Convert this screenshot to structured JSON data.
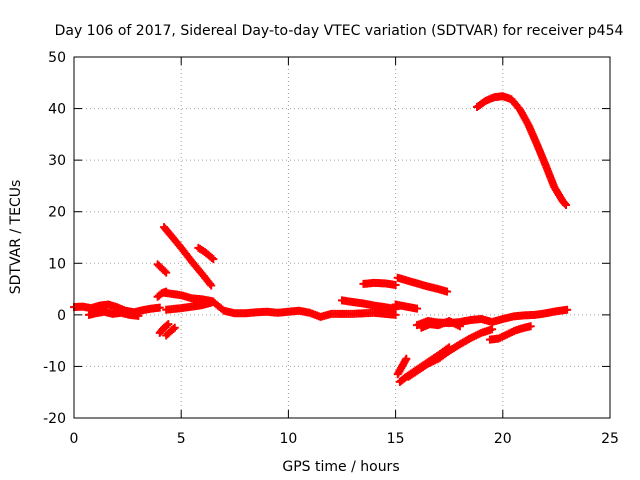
{
  "chart_data": {
    "type": "scatter",
    "title": "Day 106 of 2017, Sidereal Day-to-day VTEC variation (SDTVAR) for receiver p454",
    "xlabel": "GPS time / hours",
    "ylabel": "SDTVAR / TECUs",
    "xlim": [
      0,
      25
    ],
    "ylim": [
      -20,
      50
    ],
    "xticks": [
      0,
      5,
      10,
      15,
      20,
      25
    ],
    "yticks": [
      -20,
      -10,
      0,
      10,
      20,
      30,
      40,
      50
    ],
    "grid": true,
    "marker": "plus",
    "color": "#ff0000",
    "series": [
      {
        "x": [
          0.0,
          0.4,
          0.8,
          1.2,
          1.6,
          2.0,
          2.4,
          2.8,
          3.2,
          3.6,
          4.0
        ],
        "y": [
          1.5,
          1.6,
          1.3,
          1.8,
          2.0,
          1.5,
          0.8,
          0.5,
          0.9,
          1.2,
          1.4
        ]
      },
      {
        "x": [
          0.7,
          1.0,
          1.4,
          1.8,
          2.2,
          2.6,
          3.0
        ],
        "y": [
          0.0,
          0.3,
          0.6,
          0.2,
          0.4,
          0.0,
          -0.2
        ]
      },
      {
        "x": [
          3.9,
          4.1,
          4.3
        ],
        "y": [
          9.8,
          9.0,
          8.2
        ]
      },
      {
        "x": [
          3.9,
          4.1,
          4.3
        ],
        "y": [
          3.5,
          4.2,
          4.5
        ]
      },
      {
        "x": [
          4.0,
          4.2,
          4.4
        ],
        "y": [
          -3.5,
          -2.5,
          -1.8
        ]
      },
      {
        "x": [
          4.3,
          4.5,
          4.7
        ],
        "y": [
          -4.0,
          -3.2,
          -2.5
        ]
      },
      {
        "x": [
          4.2,
          4.5,
          5.0,
          5.5,
          6.0,
          6.4
        ],
        "y": [
          17.0,
          15.5,
          13.0,
          10.3,
          7.8,
          5.7
        ]
      },
      {
        "x": [
          5.8,
          6.1,
          6.5
        ],
        "y": [
          13.0,
          12.2,
          10.8
        ]
      },
      {
        "x": [
          4.2,
          5.0,
          5.5,
          6.0,
          6.5
        ],
        "y": [
          4.3,
          3.8,
          3.2,
          3.0,
          2.6
        ]
      },
      {
        "x": [
          4.3,
          5.0,
          5.5,
          6.0,
          6.5,
          7.0,
          7.5,
          8.0,
          8.5,
          9.0,
          9.5,
          10.0,
          10.5,
          11.0,
          11.5,
          12.0,
          13.0,
          14.0,
          14.5,
          15.0
        ],
        "y": [
          1.0,
          1.3,
          1.6,
          1.9,
          2.5,
          0.8,
          0.3,
          0.3,
          0.5,
          0.6,
          0.4,
          0.6,
          0.8,
          0.4,
          -0.4,
          0.2,
          0.2,
          0.4,
          0.2,
          0.0
        ]
      },
      {
        "x": [
          12.5,
          13.0,
          13.5,
          14.0,
          14.5,
          15.0
        ],
        "y": [
          2.8,
          2.5,
          2.2,
          1.8,
          1.5,
          1.1
        ]
      },
      {
        "x": [
          13.5,
          14.0,
          14.5,
          15.0
        ],
        "y": [
          6.0,
          6.2,
          6.1,
          5.8
        ]
      },
      {
        "x": [
          15.1,
          15.5,
          16.0,
          16.5,
          17.0,
          17.4
        ],
        "y": [
          7.2,
          6.7,
          6.1,
          5.5,
          5.0,
          4.5
        ]
      },
      {
        "x": [
          15.0,
          15.5,
          16.0
        ],
        "y": [
          2.0,
          1.6,
          1.2
        ]
      },
      {
        "x": [
          16.0,
          16.5,
          17.0,
          17.5,
          18.0,
          18.5,
          19.0,
          19.5,
          20.0,
          20.5,
          21.0,
          21.5,
          22.0,
          22.5,
          23.0
        ],
        "y": [
          -2.0,
          -1.2,
          -1.5,
          -1.6,
          -1.4,
          -1.0,
          -0.8,
          -1.4,
          -0.8,
          -0.3,
          -0.1,
          0.0,
          0.3,
          0.7,
          1.0
        ]
      },
      {
        "x": [
          16.2,
          16.6,
          17.0,
          17.5,
          18.0
        ],
        "y": [
          -2.5,
          -1.8,
          -2.0,
          -1.2,
          -2.2
        ]
      },
      {
        "x": [
          15.1,
          15.3,
          15.5
        ],
        "y": [
          -11.5,
          -10.0,
          -8.5
        ]
      },
      {
        "x": [
          15.2,
          15.5,
          16.0,
          16.5,
          17.0,
          17.5
        ],
        "y": [
          -13.0,
          -12.0,
          -10.6,
          -9.2,
          -7.8,
          -6.3
        ]
      },
      {
        "x": [
          15.6,
          16.5,
          17.0,
          17.5,
          18.0,
          18.5,
          19.0,
          19.5
        ],
        "y": [
          -12.0,
          -9.5,
          -8.5,
          -7.0,
          -5.7,
          -4.5,
          -3.5,
          -2.8
        ]
      },
      {
        "x": [
          19.4,
          19.8,
          20.2,
          20.6,
          21.0,
          21.3
        ],
        "y": [
          -4.8,
          -4.6,
          -3.8,
          -3.0,
          -2.5,
          -2.2
        ]
      },
      {
        "x": [
          18.8,
          19.2,
          19.6,
          20.0,
          20.4,
          20.8,
          21.2,
          21.6,
          22.0,
          22.4,
          22.8,
          22.95
        ],
        "y": [
          40.3,
          41.5,
          42.2,
          42.4,
          41.8,
          39.8,
          36.8,
          33.0,
          29.0,
          24.8,
          22.0,
          21.3
        ]
      }
    ]
  }
}
